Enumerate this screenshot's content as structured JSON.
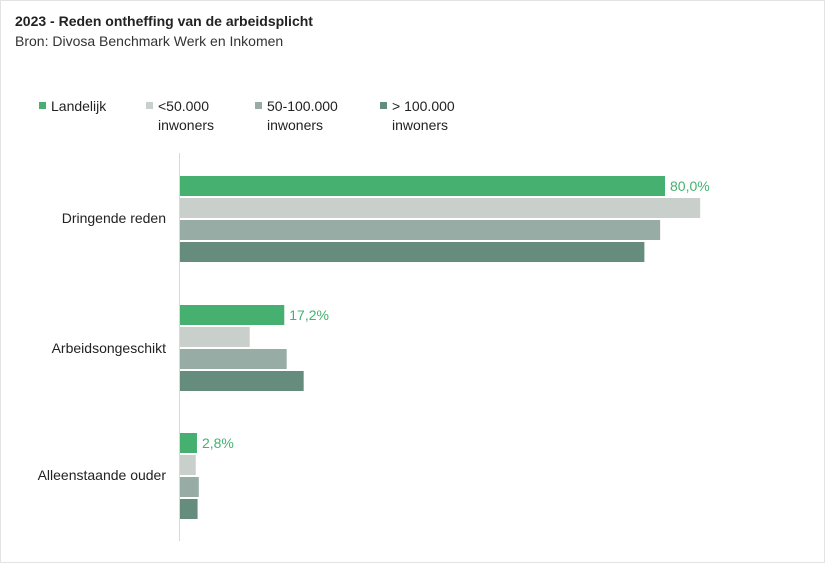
{
  "chart_data": {
    "type": "bar",
    "orientation": "horizontal",
    "title": "2023 - Reden ontheffing van de arbeidsplicht",
    "subtitle": "Bron: Divosa Benchmark Werk en Inkomen",
    "categories": [
      "Dringende reden",
      "Arbeidsongeschikt",
      "Alleenstaande ouder"
    ],
    "series": [
      {
        "name": "Landelijk",
        "color": "#46b070",
        "values": [
          80.0,
          17.2,
          2.8
        ],
        "labels": [
          "80,0%",
          "17,2%",
          "2,8%"
        ]
      },
      {
        "name": "<50.000 inwoners",
        "color": "#c9d0cc",
        "values": [
          85.8,
          11.5,
          2.6
        ]
      },
      {
        "name": "50-100.000 inwoners",
        "color": "#97aca4",
        "values": [
          79.2,
          17.6,
          3.1
        ]
      },
      {
        "name": "> 100.000 inwoners",
        "color": "#668c7e",
        "values": [
          76.6,
          20.4,
          2.9
        ]
      }
    ],
    "xlim": [
      0,
      100
    ],
    "grid": false,
    "legend_position": "top"
  }
}
